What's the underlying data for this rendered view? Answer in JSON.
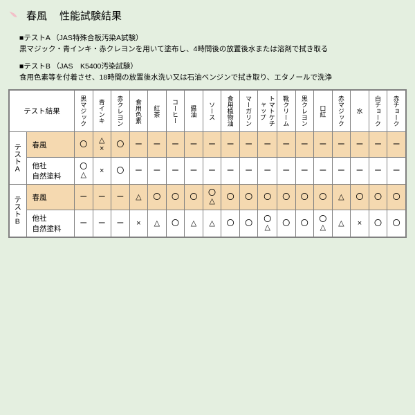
{
  "title": "春風",
  "subtitle": "性能試験結果",
  "descriptions": [
    {
      "head": "■テストA （JAS特殊合板汚染A試験）",
      "body": "黒マジック・青インキ・赤クレヨンを用いて塗布し、4時間後の放置後水または溶剤で拭き取る"
    },
    {
      "head": "■テストB （JAS　K5400汚染試験）",
      "body": "食用色素等を付着させ、18時間の放置後水洗い又は石油ベンジンで拭き取り、エタノールで洗浄"
    }
  ],
  "cornerLabel": "テスト結果",
  "columns": [
    "黒マジック",
    "青インキ",
    "赤クレヨン",
    "食用色素",
    "紅茶",
    "コーヒー",
    "醤油",
    "ソース",
    "食用植物油",
    "マーガリン",
    "トマトケチャップ",
    "靴クリーム",
    "黒クレヨン",
    "口紅",
    "赤マジック",
    "水",
    "白チョーク",
    "赤チョーク"
  ],
  "groups": [
    {
      "label": "テストA",
      "rows": [
        {
          "label": "春風",
          "highlight": true,
          "cells": [
            "〇",
            "△\n×",
            "〇",
            "ー",
            "ー",
            "ー",
            "ー",
            "ー",
            "ー",
            "ー",
            "ー",
            "ー",
            "ー",
            "ー",
            "ー",
            "ー",
            "ー",
            "ー"
          ]
        },
        {
          "label": "他社\n自然塗料",
          "highlight": false,
          "cells": [
            "〇\n△",
            "×",
            "〇",
            "ー",
            "ー",
            "ー",
            "ー",
            "ー",
            "ー",
            "ー",
            "ー",
            "ー",
            "ー",
            "ー",
            "ー",
            "ー",
            "ー",
            "ー"
          ]
        }
      ]
    },
    {
      "label": "テストB",
      "rows": [
        {
          "label": "春風",
          "highlight": true,
          "cells": [
            "ー",
            "ー",
            "ー",
            "△",
            "〇",
            "〇",
            "〇",
            "〇\n△",
            "〇",
            "〇",
            "〇",
            "〇",
            "〇",
            "〇",
            "△",
            "〇",
            "〇",
            "〇"
          ]
        },
        {
          "label": "他社\n自然塗料",
          "highlight": false,
          "cells": [
            "ー",
            "ー",
            "ー",
            "×",
            "△",
            "〇",
            "△",
            "△",
            "〇",
            "〇",
            "〇\n△",
            "〇",
            "〇",
            "〇\n△",
            "△",
            "×",
            "〇",
            "〇"
          ]
        }
      ]
    }
  ],
  "colors": {
    "background": "#e4efe0",
    "highlight": "#f5d9b0",
    "border": "#808080",
    "leaf": "#f2c0c8"
  }
}
